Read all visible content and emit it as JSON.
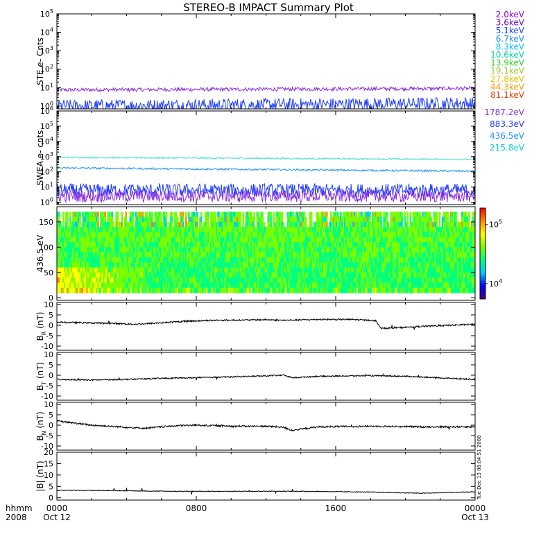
{
  "title": "STEREO-B IMPACT Summary Plot",
  "time_axis": {
    "ticks": [
      {
        "line1": "0000",
        "line2": "Oct 12",
        "hour": 0
      },
      {
        "line1": "0800",
        "line2": "",
        "hour": 8
      },
      {
        "line1": "1600",
        "line2": "",
        "hour": 16
      },
      {
        "line1": "0000",
        "line2": "Oct 13",
        "hour": 24
      }
    ],
    "corner_line1": "hhmm",
    "corner_line2": "2008"
  },
  "side_annotation": "Tue Dec 13 08:04:51 2008",
  "colorbar": {
    "labels": [
      {
        "base": "10",
        "exp": "5",
        "value": 100000
      },
      {
        "base": "10",
        "exp": "4",
        "value": 10000
      }
    ],
    "range": [
      5500,
      190000
    ],
    "stops": [
      "#4b0082",
      "#0000ff",
      "#00c8ff",
      "#00ff80",
      "#7cfc00",
      "#ffff00",
      "#ff8c00",
      "#ff0000"
    ]
  },
  "chart_data": [
    {
      "type": "line",
      "name": "ste",
      "ylabel": "STE e- Cnts",
      "scale": "log",
      "ylim": [
        0.7,
        100000
      ],
      "yticks": [
        {
          "base": "10",
          "exp": "0",
          "value": 1
        },
        {
          "base": "10",
          "exp": "1",
          "value": 10
        },
        {
          "base": "10",
          "exp": "2",
          "value": 100
        },
        {
          "base": "10",
          "exp": "3",
          "value": 1000
        },
        {
          "base": "10",
          "exp": "4",
          "value": 10000
        },
        {
          "base": "10",
          "exp": "5",
          "value": 100000
        }
      ],
      "legend": [
        {
          "label": "2.0keV",
          "color": "#9400d3"
        },
        {
          "label": "3.6keV",
          "color": "#6a0dad"
        },
        {
          "label": "5.1keV",
          "color": "#1e3cff"
        },
        {
          "label": "6.7keV",
          "color": "#1e90ff"
        },
        {
          "label": "8.3keV",
          "color": "#00bfff"
        },
        {
          "label": "10.6keV",
          "color": "#00d2a0"
        },
        {
          "label": "13.9keV",
          "color": "#32cd32"
        },
        {
          "label": "19.1keV",
          "color": "#9acd32"
        },
        {
          "label": "27.8keV",
          "color": "#e6c200"
        },
        {
          "label": "44.3keV",
          "color": "#ff9a00"
        },
        {
          "label": "81.1keV",
          "color": "#e03c00"
        }
      ],
      "series": [
        {
          "color": "#8a2be2",
          "start": 7.5,
          "end": 9,
          "noise": 0.1,
          "dips": false
        },
        {
          "color": "#1e3cff",
          "start": 1.0,
          "end": 1.4,
          "noise": 0.35,
          "dips": false
        }
      ]
    },
    {
      "type": "line",
      "name": "swea",
      "ylabel": "SWEA e- cnts",
      "scale": "log",
      "ylim": [
        0.7,
        1000000
      ],
      "yticks": [
        {
          "base": "10",
          "exp": "0",
          "value": 1
        },
        {
          "base": "10",
          "exp": "1",
          "value": 10
        },
        {
          "base": "10",
          "exp": "2",
          "value": 100
        },
        {
          "base": "10",
          "exp": "3",
          "value": 1000
        },
        {
          "base": "10",
          "exp": "4",
          "value": 10000
        },
        {
          "base": "10",
          "exp": "5",
          "value": 100000
        },
        {
          "base": "10",
          "exp": "6",
          "value": 1000000
        }
      ],
      "legend": [
        {
          "label": "1787.2eV",
          "color": "#8a2be2"
        },
        {
          "label": "883.3eV",
          "color": "#1e3cff"
        },
        {
          "label": "436.5eV",
          "color": "#1e90ff"
        },
        {
          "label": "215.8eV",
          "color": "#00ced1"
        }
      ],
      "series": [
        {
          "color": "#40e0d0",
          "start": 900,
          "end": 650,
          "noise": 0.05,
          "dips": false
        },
        {
          "color": "#1e90ff",
          "start": 180,
          "end": 110,
          "noise": 0.06,
          "dips": false
        },
        {
          "color": "#1e3cff",
          "start": 6,
          "end": 6,
          "noise": 0.45,
          "dips": false
        },
        {
          "color": "#8a2be2",
          "start": 2.5,
          "end": 2.5,
          "noise": 0.4,
          "dips": false
        }
      ]
    },
    {
      "type": "heatmap",
      "name": "pad",
      "ylabel": "436.5 eV",
      "ylim": [
        -5,
        180
      ],
      "yticks": [
        {
          "label": "0",
          "value": 0
        },
        {
          "label": "50",
          "value": 50
        },
        {
          "label": "100",
          "value": 100
        },
        {
          "label": "150",
          "value": 150
        }
      ],
      "yrange": [
        10,
        170
      ]
    },
    {
      "type": "line",
      "name": "br",
      "ylabel_main": "B",
      "ylabel_sub": "R",
      "ylabel_unit": " (nT)",
      "scale": "linear",
      "ylim": [
        -12,
        11
      ],
      "yticks": [
        {
          "label": "10",
          "value": 10
        },
        {
          "label": "5",
          "value": 5
        },
        {
          "label": "0",
          "value": 0
        },
        {
          "label": "-5",
          "value": -5
        },
        {
          "label": "-10",
          "value": -10
        }
      ],
      "x": [
        0,
        1.5,
        3,
        4.5,
        6,
        7.5,
        9,
        10.5,
        12,
        13,
        15,
        17,
        18.3,
        18.6,
        20,
        21,
        22.5,
        24
      ],
      "y": [
        1.5,
        1.2,
        1.0,
        0.5,
        1.2,
        2.0,
        2.4,
        2.5,
        2.7,
        2.4,
        2.8,
        2.8,
        2.2,
        -1.5,
        -1.0,
        -0.5,
        0.0,
        0.5
      ],
      "noise": 0.35,
      "color": "#000000"
    },
    {
      "type": "line",
      "name": "bt",
      "ylabel_main": "B",
      "ylabel_sub": "T",
      "ylabel_unit": " (nT)",
      "scale": "linear",
      "ylim": [
        -12,
        11
      ],
      "yticks": [
        {
          "label": "10",
          "value": 10
        },
        {
          "label": "5",
          "value": 5
        },
        {
          "label": "0",
          "value": 0
        },
        {
          "label": "-5",
          "value": -5
        },
        {
          "label": "-10",
          "value": -10
        }
      ],
      "x": [
        0,
        2,
        4,
        6,
        8,
        10,
        12,
        13,
        13.5,
        15,
        18,
        20,
        22,
        24
      ],
      "y": [
        -2.0,
        -2.3,
        -2.0,
        -1.5,
        -1.2,
        -0.8,
        -0.3,
        0.0,
        -1.2,
        -0.5,
        -0.2,
        -0.5,
        -1.3,
        -2.0
      ],
      "noise": 0.3,
      "color": "#000000"
    },
    {
      "type": "line",
      "name": "bn",
      "ylabel_main": "B",
      "ylabel_sub": "N",
      "ylabel_unit": " (nT)",
      "scale": "linear",
      "ylim": [
        -12,
        11
      ],
      "yticks": [
        {
          "label": "10",
          "value": 10
        },
        {
          "label": "5",
          "value": 5
        },
        {
          "label": "0",
          "value": 0
        },
        {
          "label": "-5",
          "value": -5
        },
        {
          "label": "-10",
          "value": -10
        }
      ],
      "x": [
        0,
        1,
        2,
        3,
        4,
        5,
        6,
        7,
        8,
        10,
        12,
        13,
        13.5,
        15,
        18,
        21,
        24
      ],
      "y": [
        2.0,
        1.0,
        0.0,
        -0.5,
        -1.0,
        -1.5,
        -0.8,
        -0.2,
        0.0,
        -0.5,
        -0.5,
        -1.0,
        -2.5,
        -0.8,
        -0.5,
        -0.8,
        -0.8
      ],
      "noise": 0.4,
      "color": "#000000"
    },
    {
      "type": "line",
      "name": "bmag",
      "ylabel_main": "|B|",
      "ylabel_sub": "",
      "ylabel_unit": " (nT)",
      "scale": "linear",
      "ylim": [
        -1,
        20
      ],
      "yticks": [
        {
          "label": "20",
          "value": 20
        },
        {
          "label": "15",
          "value": 15
        },
        {
          "label": "10",
          "value": 10
        },
        {
          "label": "5",
          "value": 5
        },
        {
          "label": "0",
          "value": 0
        }
      ],
      "x": [
        0,
        3,
        6,
        9,
        12,
        15,
        18,
        21,
        24
      ],
      "y": [
        3.3,
        3.2,
        2.9,
        2.8,
        2.9,
        2.8,
        2.5,
        2.0,
        2.6
      ],
      "noise": 0.15,
      "color": "#000000"
    }
  ]
}
